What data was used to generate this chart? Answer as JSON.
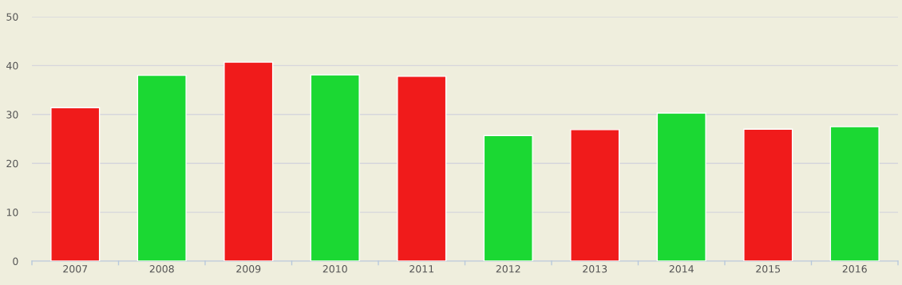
{
  "chart_data": {
    "type": "bar",
    "categories": [
      "2007",
      "2008",
      "2009",
      "2010",
      "2011",
      "2012",
      "2013",
      "2014",
      "2015",
      "2016"
    ],
    "values": [
      31.4,
      38.0,
      40.7,
      38.1,
      37.8,
      25.7,
      26.9,
      30.3,
      27.0,
      27.5
    ],
    "colors": [
      "#f01b1b",
      "#1bd833",
      "#f01b1b",
      "#1bd833",
      "#f01b1b",
      "#1bd833",
      "#f01b1b",
      "#1bd833",
      "#f01b1b",
      "#1bd833"
    ],
    "ylim": [
      0,
      50
    ],
    "yticks": [
      0,
      10,
      20,
      30,
      40,
      50
    ],
    "grid": "y"
  }
}
